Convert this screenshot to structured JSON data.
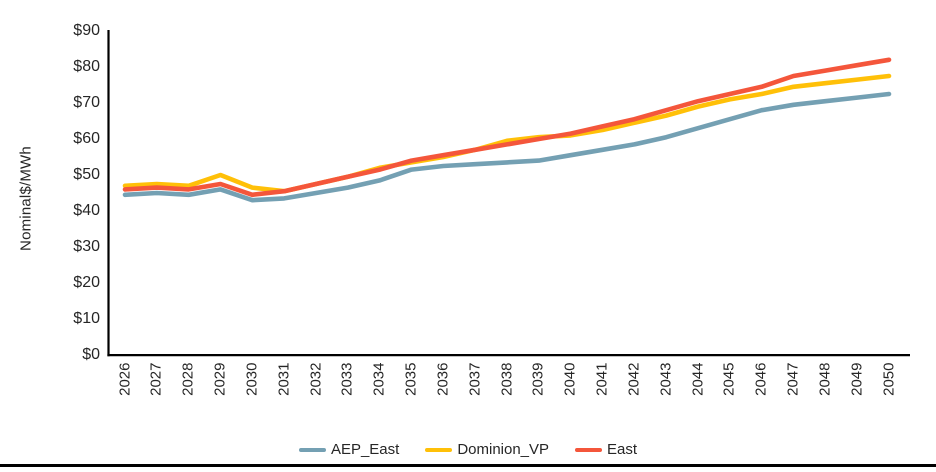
{
  "chart_data": {
    "type": "line",
    "title": "",
    "xlabel": "",
    "ylabel": "Nominal$/MWh",
    "ylim": [
      0,
      90
    ],
    "ytick_step": 10,
    "ytick_labels": [
      "$0",
      "$10",
      "$20",
      "$30",
      "$40",
      "$50",
      "$60",
      "$70",
      "$80",
      "$90"
    ],
    "x": [
      2026,
      2027,
      2028,
      2029,
      2030,
      2031,
      2032,
      2033,
      2034,
      2035,
      2036,
      2037,
      2038,
      2039,
      2040,
      2041,
      2042,
      2043,
      2044,
      2045,
      2046,
      2047,
      2048,
      2049,
      2050
    ],
    "grid": false,
    "legend_position": "bottom",
    "series": [
      {
        "name": "AEP_East",
        "color": "#74A0B3",
        "values": [
          44.5,
          45,
          44.5,
          46,
          43,
          43.5,
          45,
          46.5,
          48.5,
          51.5,
          52.5,
          53,
          53.5,
          54,
          55.5,
          57,
          58.5,
          60.5,
          63,
          65.5,
          68,
          69.5,
          70.5,
          71.5,
          72.5
        ]
      },
      {
        "name": "Dominion_VP",
        "color": "#FFC008",
        "values": [
          47,
          47.5,
          47,
          50,
          46.5,
          45.5,
          47.5,
          49.5,
          52,
          53.5,
          55,
          57,
          59.5,
          60.5,
          61,
          62.5,
          64.5,
          66.5,
          69,
          71,
          72.5,
          74.5,
          75.5,
          76.5,
          77.5
        ]
      },
      {
        "name": "East",
        "color": "#F4563B",
        "values": [
          46,
          46.5,
          46,
          47.5,
          44.5,
          45.5,
          47.5,
          49.5,
          51.5,
          54,
          55.5,
          57,
          58.5,
          60,
          61.5,
          63.5,
          65.5,
          68,
          70.5,
          72.5,
          74.5,
          77.5,
          79,
          80.5,
          82
        ]
      }
    ]
  },
  "colors": {
    "axis": "#000000",
    "text": "#262626",
    "background": "#FFFFFF"
  }
}
